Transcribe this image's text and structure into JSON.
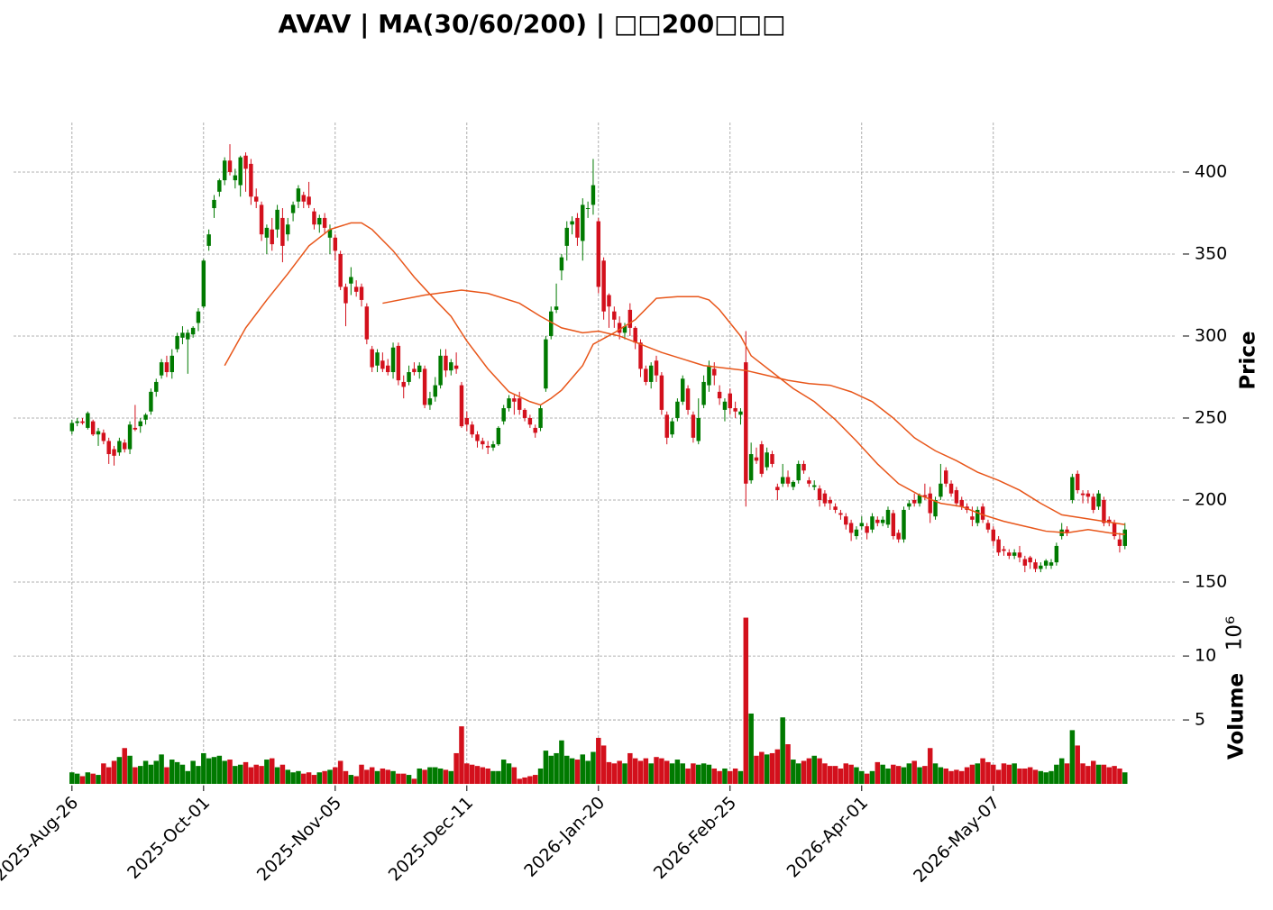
{
  "chart_data": {
    "type": "candlestick",
    "title": "AVAV  |  MA(30/60/200)  |  □□200□□□",
    "ylabel": "Price",
    "y2label": "Volume",
    "y2_multiplier_label": "10⁶",
    "up_color": "#007a00",
    "down_color": "#d3101c",
    "grid": true,
    "xlim": [
      -11.1,
      209.8
    ],
    "xticks": [
      {
        "value": 0,
        "label": "2025-Aug-26"
      },
      {
        "value": 25,
        "label": "2025-Oct-01"
      },
      {
        "value": 50,
        "label": "2025-Nov-05"
      },
      {
        "value": 75,
        "label": "2025-Dec-11"
      },
      {
        "value": 100,
        "label": "2026-Jan-20"
      },
      {
        "value": 125,
        "label": "2026-Feb-25"
      },
      {
        "value": 150,
        "label": "2026-Apr-01"
      },
      {
        "value": 175,
        "label": "2026-May-07"
      }
    ],
    "ylim": [
      142.3,
      430.2
    ],
    "yticks": [
      150,
      200,
      250,
      300,
      350,
      400
    ],
    "y2lim": [
      0,
      14.8
    ],
    "y2ticks": [
      5,
      10
    ],
    "ohlc": [
      [
        242,
        249,
        240,
        247
      ],
      [
        247,
        250,
        245,
        248
      ],
      [
        248,
        250,
        246,
        247
      ],
      [
        244,
        254,
        243,
        253
      ],
      [
        248,
        249,
        239,
        240
      ],
      [
        240,
        244,
        233,
        242
      ],
      [
        241,
        243,
        234,
        236
      ],
      [
        236,
        238,
        222,
        228
      ],
      [
        231,
        233,
        221,
        227
      ],
      [
        229,
        238,
        227,
        236
      ],
      [
        235,
        237,
        229,
        231
      ],
      [
        231,
        248,
        228,
        246
      ],
      [
        244,
        258,
        242,
        243
      ],
      [
        245,
        250,
        241,
        248
      ],
      [
        249,
        253,
        246,
        252
      ],
      [
        254,
        268,
        252,
        266
      ],
      [
        266,
        274,
        263,
        272
      ],
      [
        276,
        286,
        274,
        284
      ],
      [
        284,
        288,
        275,
        278
      ],
      [
        278,
        292,
        274,
        288
      ],
      [
        292,
        302,
        290,
        300
      ],
      [
        299,
        306,
        295,
        302
      ],
      [
        298,
        304,
        277,
        302
      ],
      [
        301,
        306,
        299,
        305
      ],
      [
        308,
        317,
        303,
        315
      ],
      [
        318,
        347,
        317,
        346
      ],
      [
        355,
        365,
        352,
        362
      ],
      [
        378,
        386,
        372,
        383
      ],
      [
        388,
        396,
        385,
        395
      ],
      [
        395,
        409,
        392,
        407
      ],
      [
        407,
        417,
        398,
        400
      ],
      [
        395,
        402,
        390,
        398
      ],
      [
        392,
        410,
        385,
        409
      ],
      [
        410,
        412,
        388,
        402
      ],
      [
        405,
        408,
        380,
        385
      ],
      [
        385,
        390,
        378,
        382
      ],
      [
        380,
        382,
        358,
        362
      ],
      [
        360,
        368,
        350,
        366
      ],
      [
        365,
        372,
        352,
        356
      ],
      [
        365,
        380,
        360,
        377
      ],
      [
        372,
        378,
        345,
        355
      ],
      [
        362,
        372,
        358,
        368
      ],
      [
        375,
        382,
        370,
        380
      ],
      [
        382,
        392,
        378,
        390
      ],
      [
        386,
        388,
        378,
        382
      ],
      [
        385,
        394,
        378,
        380
      ],
      [
        376,
        378,
        365,
        368
      ],
      [
        368,
        374,
        363,
        372
      ],
      [
        372,
        375,
        362,
        366
      ],
      [
        360,
        368,
        350,
        365
      ],
      [
        360,
        362,
        346,
        352
      ],
      [
        350,
        352,
        328,
        330
      ],
      [
        330,
        332,
        306,
        320
      ],
      [
        332,
        342,
        325,
        336
      ],
      [
        330,
        334,
        324,
        327
      ],
      [
        330,
        332,
        318,
        322
      ],
      [
        318,
        320,
        295,
        298
      ],
      [
        292,
        294,
        278,
        281
      ],
      [
        282,
        292,
        278,
        290
      ],
      [
        285,
        290,
        278,
        280
      ],
      [
        282,
        286,
        276,
        278
      ],
      [
        278,
        296,
        274,
        293
      ],
      [
        294,
        296,
        270,
        273
      ],
      [
        272,
        276,
        262,
        269
      ],
      [
        272,
        282,
        270,
        278
      ],
      [
        280,
        284,
        276,
        278
      ],
      [
        278,
        284,
        274,
        282
      ],
      [
        280,
        282,
        256,
        258
      ],
      [
        258,
        266,
        255,
        262
      ],
      [
        263,
        275,
        260,
        270
      ],
      [
        270,
        292,
        268,
        288
      ],
      [
        288,
        292,
        275,
        279
      ],
      [
        279,
        286,
        276,
        284
      ],
      [
        282,
        290,
        277,
        280
      ],
      [
        270,
        272,
        244,
        245
      ],
      [
        250,
        254,
        242,
        246
      ],
      [
        246,
        248,
        238,
        240
      ],
      [
        240,
        242,
        232,
        236
      ],
      [
        236,
        238,
        231,
        234
      ],
      [
        233,
        236,
        228,
        232
      ],
      [
        232,
        236,
        230,
        234
      ],
      [
        234,
        245,
        233,
        244
      ],
      [
        248,
        258,
        246,
        256
      ],
      [
        256,
        264,
        254,
        262
      ],
      [
        262,
        264,
        252,
        260
      ],
      [
        262,
        266,
        252,
        255
      ],
      [
        255,
        256,
        248,
        250
      ],
      [
        250,
        252,
        244,
        246
      ],
      [
        244,
        246,
        238,
        241
      ],
      [
        244,
        258,
        242,
        256
      ],
      [
        268,
        300,
        266,
        298
      ],
      [
        300,
        318,
        298,
        315
      ],
      [
        316,
        332,
        314,
        318
      ],
      [
        340,
        350,
        334,
        348
      ],
      [
        355,
        370,
        346,
        366
      ],
      [
        368,
        373,
        362,
        370
      ],
      [
        372,
        375,
        355,
        360
      ],
      [
        358,
        384,
        346,
        380
      ],
      [
        378,
        382,
        372,
        378
      ],
      [
        380,
        408,
        374,
        392
      ],
      [
        370,
        372,
        326,
        330
      ],
      [
        346,
        348,
        310,
        315
      ],
      [
        325,
        326,
        305,
        318
      ],
      [
        315,
        318,
        305,
        310
      ],
      [
        308,
        312,
        298,
        302
      ],
      [
        302,
        308,
        298,
        306
      ],
      [
        316,
        320,
        300,
        305
      ],
      [
        305,
        306,
        292,
        296
      ],
      [
        296,
        298,
        275,
        280
      ],
      [
        280,
        282,
        270,
        272
      ],
      [
        272,
        284,
        268,
        282
      ],
      [
        285,
        288,
        272,
        276
      ],
      [
        276,
        278,
        252,
        255
      ],
      [
        252,
        254,
        234,
        238
      ],
      [
        240,
        250,
        238,
        248
      ],
      [
        250,
        262,
        248,
        260
      ],
      [
        260,
        276,
        258,
        274
      ],
      [
        268,
        270,
        252,
        255
      ],
      [
        252,
        254,
        235,
        238
      ],
      [
        236,
        262,
        234,
        250
      ],
      [
        258,
        276,
        256,
        272
      ],
      [
        270,
        285,
        266,
        282
      ],
      [
        280,
        284,
        270,
        276
      ],
      [
        266,
        270,
        258,
        262
      ],
      [
        255,
        262,
        248,
        260
      ],
      [
        265,
        268,
        252,
        256
      ],
      [
        256,
        260,
        250,
        254
      ],
      [
        252,
        256,
        246,
        254
      ],
      [
        284,
        303,
        196,
        210
      ],
      [
        212,
        235,
        210,
        228
      ],
      [
        226,
        232,
        222,
        224
      ],
      [
        234,
        236,
        214,
        216
      ],
      [
        220,
        232,
        218,
        229
      ],
      [
        228,
        230,
        220,
        222
      ],
      [
        208,
        210,
        200,
        206
      ],
      [
        210,
        222,
        208,
        214
      ],
      [
        214,
        218,
        208,
        210
      ],
      [
        208,
        212,
        206,
        211
      ],
      [
        212,
        224,
        210,
        222
      ],
      [
        222,
        224,
        216,
        218
      ],
      [
        212,
        214,
        208,
        210
      ],
      [
        208,
        212,
        206,
        209
      ],
      [
        207,
        209,
        196,
        200
      ],
      [
        204,
        206,
        196,
        198
      ],
      [
        200,
        202,
        194,
        198
      ],
      [
        196,
        198,
        192,
        194
      ],
      [
        192,
        194,
        188,
        191
      ],
      [
        190,
        192,
        182,
        185
      ],
      [
        186,
        188,
        175,
        180
      ],
      [
        178,
        184,
        176,
        182
      ],
      [
        184,
        190,
        182,
        186
      ],
      [
        184,
        186,
        176,
        180
      ],
      [
        182,
        192,
        180,
        190
      ],
      [
        188,
        190,
        184,
        186
      ],
      [
        186,
        190,
        184,
        188
      ],
      [
        185,
        196,
        183,
        194
      ],
      [
        192,
        194,
        176,
        178
      ],
      [
        180,
        182,
        174,
        176
      ],
      [
        176,
        196,
        174,
        194
      ],
      [
        196,
        200,
        194,
        198
      ],
      [
        200,
        204,
        196,
        198
      ],
      [
        198,
        204,
        196,
        203
      ],
      [
        203,
        210,
        200,
        202
      ],
      [
        204,
        208,
        186,
        192
      ],
      [
        190,
        202,
        188,
        200
      ],
      [
        202,
        222,
        200,
        210
      ],
      [
        218,
        220,
        208,
        210
      ],
      [
        210,
        212,
        202,
        204
      ],
      [
        206,
        208,
        196,
        198
      ],
      [
        200,
        202,
        194,
        196
      ],
      [
        196,
        198,
        192,
        194
      ],
      [
        190,
        196,
        184,
        188
      ],
      [
        186,
        196,
        184,
        194
      ],
      [
        196,
        198,
        186,
        188
      ],
      [
        186,
        188,
        180,
        182
      ],
      [
        182,
        184,
        172,
        175
      ],
      [
        176,
        178,
        166,
        168
      ],
      [
        170,
        172,
        166,
        169
      ],
      [
        168,
        170,
        164,
        166
      ],
      [
        166,
        170,
        164,
        168
      ],
      [
        168,
        172,
        162,
        165
      ],
      [
        164,
        166,
        156,
        160
      ],
      [
        165,
        166,
        158,
        162
      ],
      [
        162,
        164,
        156,
        158
      ],
      [
        158,
        162,
        156,
        160
      ],
      [
        160,
        164,
        158,
        163
      ],
      [
        160,
        164,
        158,
        162
      ],
      [
        162,
        174,
        160,
        172
      ],
      [
        178,
        186,
        176,
        182
      ],
      [
        182,
        184,
        178,
        180
      ],
      [
        200,
        216,
        198,
        214
      ],
      [
        216,
        218,
        204,
        206
      ],
      [
        204,
        206,
        198,
        203
      ],
      [
        204,
        206,
        198,
        202
      ],
      [
        202,
        204,
        192,
        194
      ],
      [
        196,
        206,
        194,
        204
      ],
      [
        200,
        202,
        184,
        186
      ],
      [
        188,
        190,
        184,
        186
      ],
      [
        186,
        188,
        176,
        178
      ],
      [
        176,
        180,
        168,
        172
      ],
      [
        172,
        186,
        170,
        182
      ]
    ],
    "volume": [
      0.9,
      0.8,
      0.6,
      0.9,
      0.8,
      0.7,
      1.6,
      1.3,
      1.8,
      2.1,
      2.8,
      2.2,
      1.3,
      1.4,
      1.8,
      1.5,
      1.8,
      2.3,
      1.3,
      1.9,
      1.7,
      1.5,
      1.0,
      1.8,
      1.4,
      2.4,
      2.0,
      2.1,
      2.2,
      1.8,
      1.9,
      1.4,
      1.5,
      1.7,
      1.3,
      1.5,
      1.4,
      1.9,
      2.0,
      1.3,
      1.5,
      1.1,
      0.9,
      1.0,
      0.8,
      0.9,
      0.7,
      0.9,
      1.0,
      1.1,
      1.3,
      1.8,
      1.0,
      0.7,
      0.6,
      1.5,
      1.1,
      1.3,
      1.0,
      1.2,
      1.1,
      1.0,
      0.8,
      0.8,
      0.7,
      0.4,
      1.2,
      1.1,
      1.3,
      1.3,
      1.2,
      1.1,
      1.0,
      2.4,
      4.5,
      1.6,
      1.5,
      1.4,
      1.3,
      1.2,
      1.0,
      1.0,
      1.9,
      1.6,
      1.3,
      0.4,
      0.5,
      0.6,
      0.7,
      1.2,
      2.6,
      2.2,
      2.4,
      3.4,
      2.2,
      2.0,
      1.9,
      2.3,
      1.8,
      2.5,
      3.6,
      3.0,
      1.7,
      1.6,
      1.8,
      1.6,
      2.4,
      2.0,
      1.8,
      2.0,
      1.6,
      2.1,
      2.0,
      1.8,
      1.6,
      1.9,
      1.6,
      1.2,
      1.6,
      1.5,
      1.6,
      1.5,
      1.2,
      1.0,
      1.2,
      1.0,
      1.2,
      1.0,
      13.0,
      5.5,
      2.2,
      2.5,
      2.3,
      2.4,
      2.7,
      5.2,
      3.1,
      1.9,
      1.6,
      1.8,
      2.0,
      2.2,
      2.0,
      1.6,
      1.4,
      1.4,
      1.2,
      1.6,
      1.5,
      1.3,
      1.0,
      0.8,
      1.0,
      1.7,
      1.5,
      1.2,
      1.5,
      1.4,
      1.3,
      1.6,
      1.8,
      1.3,
      1.4,
      2.8,
      1.6,
      1.3,
      1.2,
      1.0,
      1.1,
      1.0,
      1.3,
      1.5,
      1.6,
      2.0,
      1.7,
      1.5,
      1.1,
      1.6,
      1.5,
      1.6,
      1.2,
      1.2,
      1.3,
      1.1,
      1.0,
      0.9,
      1.0,
      1.5,
      2.0,
      1.6,
      4.2,
      3.0,
      1.6,
      1.4,
      1.8,
      1.5,
      1.5,
      1.3,
      1.4,
      1.2,
      0.9
    ],
    "series": [
      {
        "color": "#e8561a",
        "x": [
          29,
          33,
          37,
          41,
          45,
          49,
          53,
          55,
          57,
          61,
          65,
          69,
          72,
          75,
          79,
          83,
          87,
          89,
          91,
          93,
          97,
          99,
          103,
          107,
          111,
          115,
          119,
          121,
          123,
          127,
          129,
          133,
          137,
          141,
          145,
          149,
          153,
          157,
          161,
          165,
          169,
          173,
          177,
          181,
          185,
          189,
          193,
          197,
          200
        ],
        "values": [
          282,
          305,
          322,
          338,
          355,
          365,
          369,
          369,
          365,
          352,
          336,
          322,
          312,
          297,
          280,
          266,
          260,
          258,
          262,
          267,
          282,
          295,
          302,
          310,
          323,
          324,
          324,
          322,
          316,
          300,
          288,
          278,
          268,
          260,
          249,
          236,
          222,
          210,
          203,
          198,
          196,
          191,
          187,
          184,
          181,
          180,
          182,
          180,
          179
        ]
      },
      {
        "color": "#e8561a",
        "x": [
          59,
          67,
          74,
          79,
          85,
          89,
          93,
          97,
          100,
          104,
          108,
          112,
          116,
          120,
          124,
          128,
          132,
          136,
          140,
          144,
          148,
          152,
          156,
          160,
          164,
          168,
          172,
          176,
          180,
          184,
          188,
          192,
          196,
          200
        ],
        "values": [
          320,
          325,
          328,
          326,
          320,
          312,
          305,
          302,
          303,
          300,
          295,
          290,
          286,
          282,
          280.5,
          279,
          276,
          273,
          271,
          270,
          266,
          260,
          250,
          238,
          230,
          224,
          217,
          212,
          206,
          198,
          191,
          189,
          187,
          185
        ]
      }
    ]
  }
}
